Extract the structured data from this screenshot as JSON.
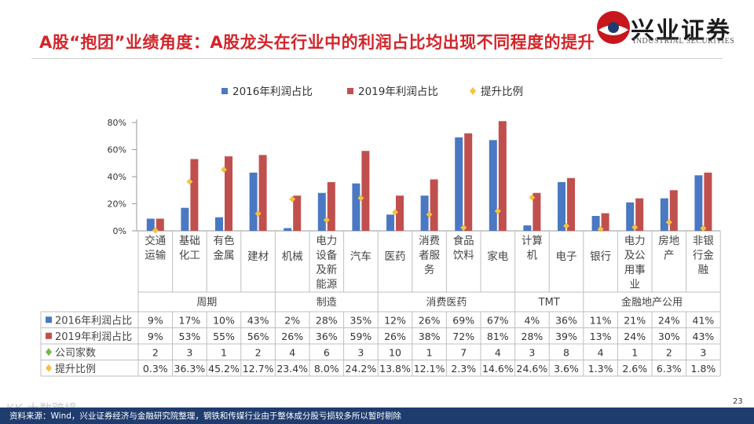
{
  "header": {
    "title": "A股“抱团”业绩角度：A股龙头在行业中的利润占比均出现不同程度的提升",
    "logo_name": "兴业证券",
    "logo_sub": "INDUSTRIAL SECURITIES",
    "logo_icon": "industrial-securities-logo-icon"
  },
  "chart_data": {
    "type": "bar",
    "legend": [
      "2016年利润占比",
      "2019年利润占比",
      "提升比例"
    ],
    "y_ticks": [
      "80%",
      "60%",
      "40%",
      "20%",
      "0%"
    ],
    "ylim": [
      0,
      80
    ],
    "categories": [
      [
        "交通",
        "运输"
      ],
      [
        "基础",
        "化工"
      ],
      [
        "有色",
        "金属"
      ],
      [
        "建材"
      ],
      [
        "机械"
      ],
      [
        "电力",
        "设备",
        "及新",
        "能源"
      ],
      [
        "汽车"
      ],
      [
        "医药"
      ],
      [
        "消费",
        "者服",
        "务"
      ],
      [
        "食品",
        "饮料"
      ],
      [
        "家电"
      ],
      [
        "计算",
        "机"
      ],
      [
        "电子"
      ],
      [
        "银行"
      ],
      [
        "电力",
        "及公",
        "用事",
        "业"
      ],
      [
        "房地",
        "产"
      ],
      [
        "非银",
        "行金",
        "融"
      ]
    ],
    "groups": [
      {
        "name": "周期",
        "span": 4
      },
      {
        "name": "制造",
        "span": 3
      },
      {
        "name": "消费医药",
        "span": 4
      },
      {
        "name": "TMT",
        "span": 2
      },
      {
        "name": "金融地产公用",
        "span": 4
      }
    ],
    "series": [
      {
        "name": "2016年利润占比",
        "color": "#4a78c2",
        "values": [
          9,
          17,
          10,
          43,
          2,
          28,
          35,
          12,
          26,
          69,
          67,
          4,
          36,
          11,
          21,
          24,
          41
        ]
      },
      {
        "name": "2019年利润占比",
        "color": "#c0504d",
        "values": [
          9,
          53,
          55,
          56,
          26,
          36,
          59,
          26,
          38,
          72,
          81,
          28,
          39,
          13,
          24,
          30,
          43
        ]
      },
      {
        "name": "提升比例",
        "color": "#f5c242",
        "values": [
          0.3,
          36.3,
          45.2,
          12.7,
          23.4,
          8.0,
          24.2,
          13.8,
          12.1,
          2.3,
          14.6,
          24.6,
          3.6,
          1.3,
          2.6,
          6.3,
          1.8
        ]
      }
    ],
    "table": {
      "rows": [
        {
          "label": "2016年利润占比",
          "color": "#4a78c2",
          "marker": "square",
          "cells": [
            "9%",
            "17%",
            "10%",
            "43%",
            "2%",
            "28%",
            "35%",
            "12%",
            "26%",
            "69%",
            "67%",
            "4%",
            "36%",
            "11%",
            "21%",
            "24%",
            "41%"
          ]
        },
        {
          "label": "2019年利润占比",
          "color": "#c0504d",
          "marker": "square",
          "cells": [
            "9%",
            "53%",
            "55%",
            "56%",
            "26%",
            "36%",
            "59%",
            "26%",
            "38%",
            "72%",
            "81%",
            "28%",
            "39%",
            "13%",
            "24%",
            "30%",
            "43%"
          ]
        },
        {
          "label": "公司家数",
          "color": "#7ab648",
          "marker": "diamond",
          "cells": [
            "2",
            "3",
            "1",
            "2",
            "4",
            "6",
            "3",
            "10",
            "1",
            "7",
            "4",
            "3",
            "8",
            "4",
            "1",
            "2",
            "3"
          ]
        },
        {
          "label": "提升比例",
          "color": "#f5c242",
          "marker": "diamond",
          "cells": [
            "0.3%",
            "36.3%",
            "45.2%",
            "12.7%",
            "23.4%",
            "8.0%",
            "24.2%",
            "13.8%",
            "12.1%",
            "2.3%",
            "14.6%",
            "24.6%",
            "3.6%",
            "1.3%",
            "2.6%",
            "6.3%",
            "1.8%"
          ]
        }
      ]
    }
  },
  "footer": {
    "source": "资料来源：Wind，兴业证券经济与金融研究院整理，钢铁和传媒行业由于整体成分股亏损较多所以暂时剔除",
    "page": "23",
    "watermark": "KK 大数跨境"
  }
}
